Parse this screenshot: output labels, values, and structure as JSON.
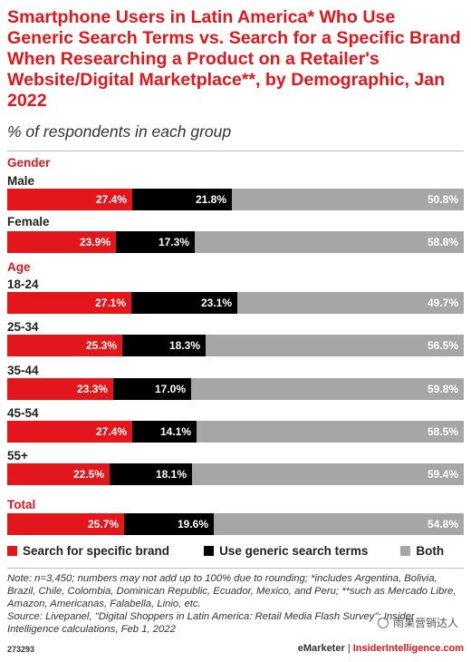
{
  "chart_data": {
    "type": "bar",
    "stacked": true,
    "orientation": "horizontal",
    "title": "Smartphone Users in Latin America* Who Use Generic Search Terms vs. Search for a Specific Brand When Researching a Product on a Retailer's Website/Digital Marketplace**, by Demographic, Jan 2022",
    "subtitle": "% of respondents in each group",
    "series_colors": [
      "#e3161c",
      "#000000",
      "#a6a6a6"
    ],
    "series": [
      {
        "name": "Search for specific brand"
      },
      {
        "name": "Use generic search terms"
      },
      {
        "name": "Both"
      }
    ],
    "groups": [
      {
        "label": "Gender",
        "rows": [
          {
            "label": "Male",
            "values": [
              27.4,
              21.8,
              50.8
            ],
            "texts": [
              "27.4%",
              "21.8%",
              "50.8%"
            ]
          },
          {
            "label": "Female",
            "values": [
              23.9,
              17.3,
              58.8
            ],
            "texts": [
              "23.9%",
              "17.3%",
              "58.8%"
            ]
          }
        ]
      },
      {
        "label": "Age",
        "rows": [
          {
            "label": "18-24",
            "values": [
              27.1,
              23.1,
              49.7
            ],
            "texts": [
              "27.1%",
              "23.1%",
              "49.7%"
            ]
          },
          {
            "label": "25-34",
            "values": [
              25.3,
              18.3,
              56.5
            ],
            "texts": [
              "25.3%",
              "18.3%",
              "56.5%"
            ]
          },
          {
            "label": "35-44",
            "values": [
              23.3,
              17.0,
              59.8
            ],
            "texts": [
              "23.3%",
              "17.0%",
              "59.8%"
            ]
          },
          {
            "label": "45-54",
            "values": [
              27.4,
              14.1,
              58.5
            ],
            "texts": [
              "27.4%",
              "14.1%",
              "58.5%"
            ]
          },
          {
            "label": "55+",
            "values": [
              22.5,
              18.1,
              59.4
            ],
            "texts": [
              "22.5%",
              "18.1%",
              "59.4%"
            ]
          }
        ]
      },
      {
        "label": "Total",
        "rows": [
          {
            "label": "",
            "values": [
              25.7,
              19.6,
              54.8
            ],
            "texts": [
              "25.7%",
              "19.6%",
              "54.8%"
            ]
          }
        ]
      }
    ],
    "legend_position": "bottom"
  },
  "note": "Note: n=3,450; numbers may not add up to 100% due to rounding; *includes Argentina, Bolivia, Brazil, Chile, Colombia, Dominican Republic, Ecuador, Mexico, and Peru; **such as Mercado Libre, Amazon, Americanas, Falabella, Linio, etc.",
  "source": "Source: Livepanel, \"Digital Shoppers in Latin America: Retail Media Flash Survey\"; Insider Intelligence calculations, Feb 1, 2022",
  "footer": {
    "chart_id": "273293",
    "brand": "eMarketer",
    "separator": "|",
    "site": "InsiderIntelligence.com"
  },
  "watermark": "雨果营销达人"
}
